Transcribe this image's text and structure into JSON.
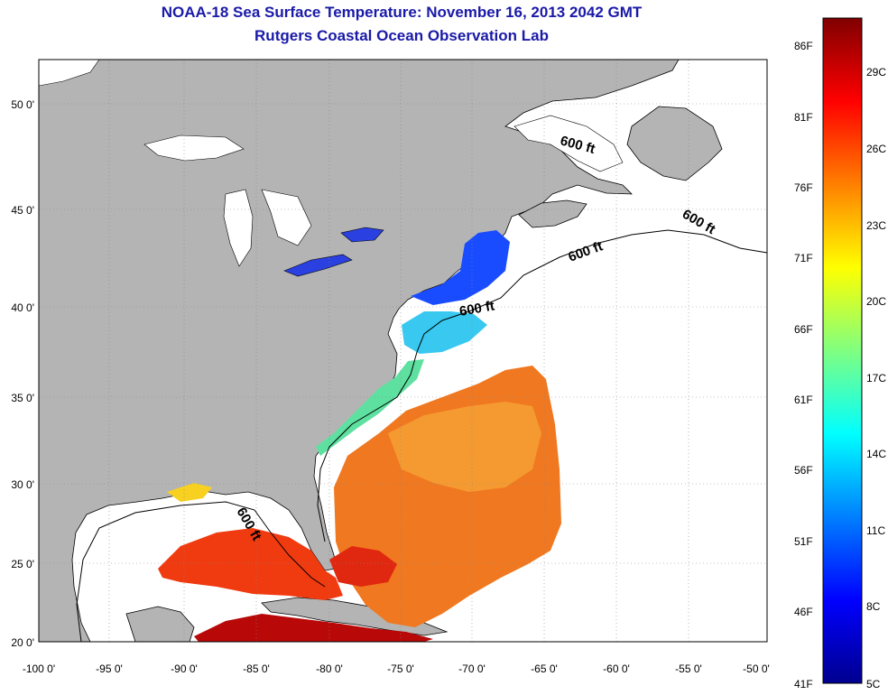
{
  "title": {
    "line1": "NOAA-18 Sea Surface Temperature:  November 16, 2013 2042 GMT",
    "line2": "Rutgers Coastal Ocean Observation Lab"
  },
  "map": {
    "lon_range": [
      -100,
      -50
    ],
    "lat_range": [
      20,
      52
    ],
    "lon_ticks": [
      "-100 0'",
      "-95 0'",
      "-90 0'",
      "-85 0'",
      "-80 0'",
      "-75 0'",
      "-70 0'",
      "-65 0'",
      "-60 0'",
      "-55 0'",
      "-50 0'"
    ],
    "lat_ticks": [
      "20 0'",
      "25 0'",
      "30 0'",
      "35 0'",
      "40 0'",
      "45 0'",
      "50 0'"
    ],
    "land_color": "#b4b4b4",
    "ocean_color": "#ffffff",
    "contour_label": "600 ft"
  },
  "colorbar": {
    "fahrenheit_labels": [
      "86F",
      "81F",
      "76F",
      "71F",
      "66F",
      "61F",
      "56F",
      "51F",
      "46F",
      "41F"
    ],
    "celsius_labels": [
      "29C",
      "26C",
      "23C",
      "20C",
      "17C",
      "14C",
      "11C",
      "8C",
      "5C"
    ],
    "range_c": [
      5,
      31
    ]
  }
}
